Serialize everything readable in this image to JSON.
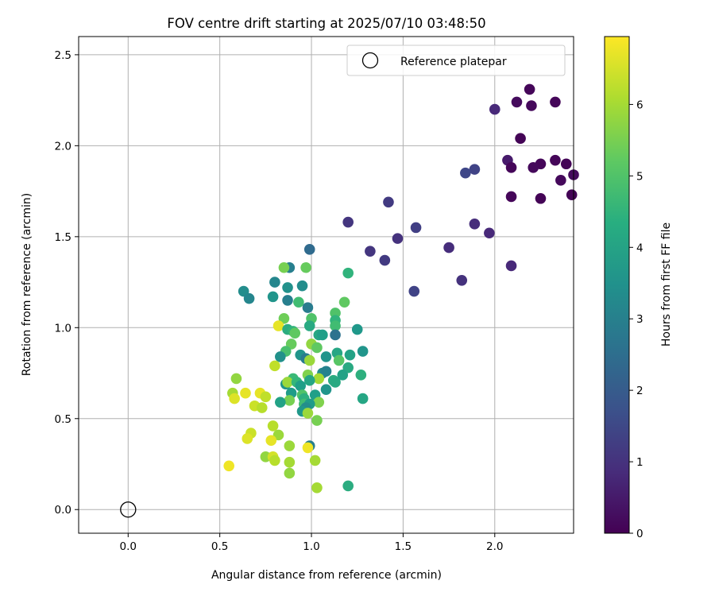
{
  "chart_data": {
    "type": "scatter",
    "title": "FOV centre drift starting at 2025/07/10 03:48:50",
    "xlabel": "Angular distance from reference (arcmin)",
    "ylabel": "Rotation from reference (arcmin)",
    "xlim": [
      -0.27,
      2.43
    ],
    "ylim": [
      -0.13,
      2.6
    ],
    "xticks": [
      "0.0",
      "0.5",
      "1.0",
      "1.5",
      "2.0"
    ],
    "xtick_values": [
      0,
      0.5,
      1.0,
      1.5,
      2.0
    ],
    "yticks": [
      "0.0",
      "0.5",
      "1.0",
      "1.5",
      "2.0",
      "2.5"
    ],
    "ytick_values": [
      0,
      0.5,
      1.0,
      1.5,
      2.0,
      2.5
    ],
    "grid": true,
    "legend": {
      "placement": "top-right",
      "entries": [
        "Reference platepar"
      ]
    },
    "reference_point": {
      "x": 0.0,
      "y": 0.0,
      "style": "hollow circle"
    },
    "colorbar": {
      "label": "Hours from first FF file",
      "colormap": "viridis",
      "range": [
        0,
        6.95
      ],
      "ticks": [
        "0",
        "1",
        "2",
        "3",
        "4",
        "5",
        "6"
      ],
      "tick_values": [
        0,
        1,
        2,
        3,
        4,
        5,
        6
      ]
    },
    "points": [
      {
        "x": 2.19,
        "y": 2.31,
        "h": 0.1
      },
      {
        "x": 2.12,
        "y": 2.24,
        "h": 0.2
      },
      {
        "x": 2.33,
        "y": 2.24,
        "h": 0.1
      },
      {
        "x": 2.2,
        "y": 2.22,
        "h": 0.15
      },
      {
        "x": 2.0,
        "y": 2.2,
        "h": 0.8
      },
      {
        "x": 2.14,
        "y": 2.04,
        "h": 0.05
      },
      {
        "x": 2.07,
        "y": 1.92,
        "h": 0.5
      },
      {
        "x": 2.33,
        "y": 1.92,
        "h": 0.1
      },
      {
        "x": 2.39,
        "y": 1.9,
        "h": 0.05
      },
      {
        "x": 2.25,
        "y": 1.9,
        "h": 0.1
      },
      {
        "x": 2.21,
        "y": 1.88,
        "h": 0.15
      },
      {
        "x": 2.09,
        "y": 1.88,
        "h": 0.1
      },
      {
        "x": 1.89,
        "y": 1.87,
        "h": 1.4
      },
      {
        "x": 1.84,
        "y": 1.85,
        "h": 1.5
      },
      {
        "x": 2.43,
        "y": 1.84,
        "h": 0.2
      },
      {
        "x": 2.36,
        "y": 1.81,
        "h": 0.15
      },
      {
        "x": 2.42,
        "y": 1.73,
        "h": 0.05
      },
      {
        "x": 2.09,
        "y": 1.72,
        "h": 0.1
      },
      {
        "x": 2.25,
        "y": 1.71,
        "h": 0.05
      },
      {
        "x": 1.42,
        "y": 1.69,
        "h": 1.2
      },
      {
        "x": 1.2,
        "y": 1.58,
        "h": 1.1
      },
      {
        "x": 1.89,
        "y": 1.57,
        "h": 0.9
      },
      {
        "x": 1.57,
        "y": 1.55,
        "h": 1.3
      },
      {
        "x": 1.97,
        "y": 1.52,
        "h": 0.8
      },
      {
        "x": 1.47,
        "y": 1.49,
        "h": 1.0
      },
      {
        "x": 1.75,
        "y": 1.44,
        "h": 0.9
      },
      {
        "x": 1.32,
        "y": 1.42,
        "h": 1.1
      },
      {
        "x": 1.4,
        "y": 1.37,
        "h": 1.2
      },
      {
        "x": 2.09,
        "y": 1.34,
        "h": 0.8
      },
      {
        "x": 1.82,
        "y": 1.26,
        "h": 1.0
      },
      {
        "x": 1.56,
        "y": 1.2,
        "h": 1.4
      },
      {
        "x": 0.99,
        "y": 1.43,
        "h": 2.4
      },
      {
        "x": 0.88,
        "y": 1.33,
        "h": 3.0
      },
      {
        "x": 0.85,
        "y": 1.33,
        "h": 5.5
      },
      {
        "x": 0.97,
        "y": 1.33,
        "h": 5.3
      },
      {
        "x": 1.2,
        "y": 1.3,
        "h": 4.5
      },
      {
        "x": 0.8,
        "y": 1.25,
        "h": 3.2
      },
      {
        "x": 0.95,
        "y": 1.23,
        "h": 3.4
      },
      {
        "x": 0.87,
        "y": 1.22,
        "h": 3.5
      },
      {
        "x": 0.63,
        "y": 1.2,
        "h": 3.4
      },
      {
        "x": 0.79,
        "y": 1.17,
        "h": 3.6
      },
      {
        "x": 0.66,
        "y": 1.16,
        "h": 3.2
      },
      {
        "x": 0.87,
        "y": 1.15,
        "h": 3.0
      },
      {
        "x": 0.93,
        "y": 1.14,
        "h": 4.8
      },
      {
        "x": 1.18,
        "y": 1.14,
        "h": 5.2
      },
      {
        "x": 0.98,
        "y": 1.11,
        "h": 2.9
      },
      {
        "x": 0.85,
        "y": 1.05,
        "h": 5.4
      },
      {
        "x": 1.0,
        "y": 1.05,
        "h": 5.0
      },
      {
        "x": 1.13,
        "y": 1.08,
        "h": 5.0
      },
      {
        "x": 1.13,
        "y": 1.04,
        "h": 4.5
      },
      {
        "x": 0.82,
        "y": 1.01,
        "h": 6.7
      },
      {
        "x": 1.13,
        "y": 1.01,
        "h": 4.8
      },
      {
        "x": 0.99,
        "y": 1.01,
        "h": 4.2
      },
      {
        "x": 0.87,
        "y": 0.99,
        "h": 4.3
      },
      {
        "x": 1.25,
        "y": 0.99,
        "h": 3.7
      },
      {
        "x": 0.9,
        "y": 0.98,
        "h": 4.5
      },
      {
        "x": 0.91,
        "y": 0.97,
        "h": 5.2
      },
      {
        "x": 1.04,
        "y": 0.96,
        "h": 4.1
      },
      {
        "x": 1.06,
        "y": 0.96,
        "h": 3.9
      },
      {
        "x": 1.13,
        "y": 0.96,
        "h": 2.6
      },
      {
        "x": 1.0,
        "y": 0.91,
        "h": 5.8
      },
      {
        "x": 0.89,
        "y": 0.91,
        "h": 5.3
      },
      {
        "x": 1.03,
        "y": 0.89,
        "h": 5.2
      },
      {
        "x": 0.86,
        "y": 0.87,
        "h": 4.9
      },
      {
        "x": 1.28,
        "y": 0.87,
        "h": 3.6
      },
      {
        "x": 1.14,
        "y": 0.86,
        "h": 4.1
      },
      {
        "x": 0.83,
        "y": 0.84,
        "h": 3.5
      },
      {
        "x": 1.21,
        "y": 0.85,
        "h": 4.0
      },
      {
        "x": 0.94,
        "y": 0.85,
        "h": 3.6
      },
      {
        "x": 1.08,
        "y": 0.84,
        "h": 3.6
      },
      {
        "x": 0.97,
        "y": 0.83,
        "h": 2.9
      },
      {
        "x": 0.99,
        "y": 0.82,
        "h": 5.9
      },
      {
        "x": 1.15,
        "y": 0.82,
        "h": 5.1
      },
      {
        "x": 0.8,
        "y": 0.79,
        "h": 6.3
      },
      {
        "x": 1.2,
        "y": 0.78,
        "h": 4.2
      },
      {
        "x": 1.06,
        "y": 0.75,
        "h": 3.3
      },
      {
        "x": 1.08,
        "y": 0.76,
        "h": 3.1
      },
      {
        "x": 1.27,
        "y": 0.74,
        "h": 4.4
      },
      {
        "x": 1.17,
        "y": 0.74,
        "h": 4.0
      },
      {
        "x": 0.98,
        "y": 0.74,
        "h": 5.6
      },
      {
        "x": 0.9,
        "y": 0.72,
        "h": 4.7
      },
      {
        "x": 1.04,
        "y": 0.72,
        "h": 6.0
      },
      {
        "x": 1.12,
        "y": 0.71,
        "h": 4.3
      },
      {
        "x": 0.99,
        "y": 0.71,
        "h": 4.1
      },
      {
        "x": 0.86,
        "y": 0.69,
        "h": 3.6
      },
      {
        "x": 0.87,
        "y": 0.7,
        "h": 5.9
      },
      {
        "x": 0.92,
        "y": 0.7,
        "h": 4.6
      },
      {
        "x": 1.13,
        "y": 0.7,
        "h": 4.2
      },
      {
        "x": 0.94,
        "y": 0.68,
        "h": 3.9
      },
      {
        "x": 1.08,
        "y": 0.66,
        "h": 3.6
      },
      {
        "x": 0.89,
        "y": 0.64,
        "h": 3.8
      },
      {
        "x": 0.95,
        "y": 0.63,
        "h": 5.0
      },
      {
        "x": 1.02,
        "y": 0.63,
        "h": 3.9
      },
      {
        "x": 0.96,
        "y": 0.61,
        "h": 4.4
      },
      {
        "x": 1.28,
        "y": 0.61,
        "h": 4.1
      },
      {
        "x": 1.04,
        "y": 0.59,
        "h": 5.6
      },
      {
        "x": 0.88,
        "y": 0.6,
        "h": 5.5
      },
      {
        "x": 0.96,
        "y": 0.58,
        "h": 4.8
      },
      {
        "x": 0.83,
        "y": 0.59,
        "h": 4.0
      },
      {
        "x": 0.99,
        "y": 0.58,
        "h": 3.8
      },
      {
        "x": 0.97,
        "y": 0.56,
        "h": 3.4
      },
      {
        "x": 0.95,
        "y": 0.54,
        "h": 3.7
      },
      {
        "x": 0.98,
        "y": 0.53,
        "h": 5.9
      },
      {
        "x": 1.03,
        "y": 0.49,
        "h": 5.5
      },
      {
        "x": 0.99,
        "y": 0.35,
        "h": 3.0
      },
      {
        "x": 1.2,
        "y": 0.13,
        "h": 4.3
      },
      {
        "x": 0.59,
        "y": 0.72,
        "h": 5.8
      },
      {
        "x": 0.57,
        "y": 0.64,
        "h": 6.0
      },
      {
        "x": 0.64,
        "y": 0.64,
        "h": 6.7
      },
      {
        "x": 0.58,
        "y": 0.61,
        "h": 6.6
      },
      {
        "x": 0.72,
        "y": 0.64,
        "h": 6.7
      },
      {
        "x": 0.75,
        "y": 0.62,
        "h": 6.3
      },
      {
        "x": 0.69,
        "y": 0.57,
        "h": 6.4
      },
      {
        "x": 0.73,
        "y": 0.56,
        "h": 6.2
      },
      {
        "x": 0.79,
        "y": 0.46,
        "h": 6.2
      },
      {
        "x": 0.67,
        "y": 0.42,
        "h": 6.4
      },
      {
        "x": 0.82,
        "y": 0.41,
        "h": 5.9
      },
      {
        "x": 0.65,
        "y": 0.39,
        "h": 6.6
      },
      {
        "x": 0.78,
        "y": 0.38,
        "h": 6.7
      },
      {
        "x": 0.88,
        "y": 0.35,
        "h": 5.9
      },
      {
        "x": 0.98,
        "y": 0.34,
        "h": 6.8
      },
      {
        "x": 0.75,
        "y": 0.29,
        "h": 5.8
      },
      {
        "x": 0.79,
        "y": 0.29,
        "h": 6.5
      },
      {
        "x": 0.8,
        "y": 0.27,
        "h": 6.2
      },
      {
        "x": 0.88,
        "y": 0.26,
        "h": 6.0
      },
      {
        "x": 1.02,
        "y": 0.27,
        "h": 6.0
      },
      {
        "x": 0.55,
        "y": 0.24,
        "h": 6.8
      },
      {
        "x": 0.88,
        "y": 0.2,
        "h": 5.8
      },
      {
        "x": 1.03,
        "y": 0.12,
        "h": 6.0
      }
    ]
  }
}
